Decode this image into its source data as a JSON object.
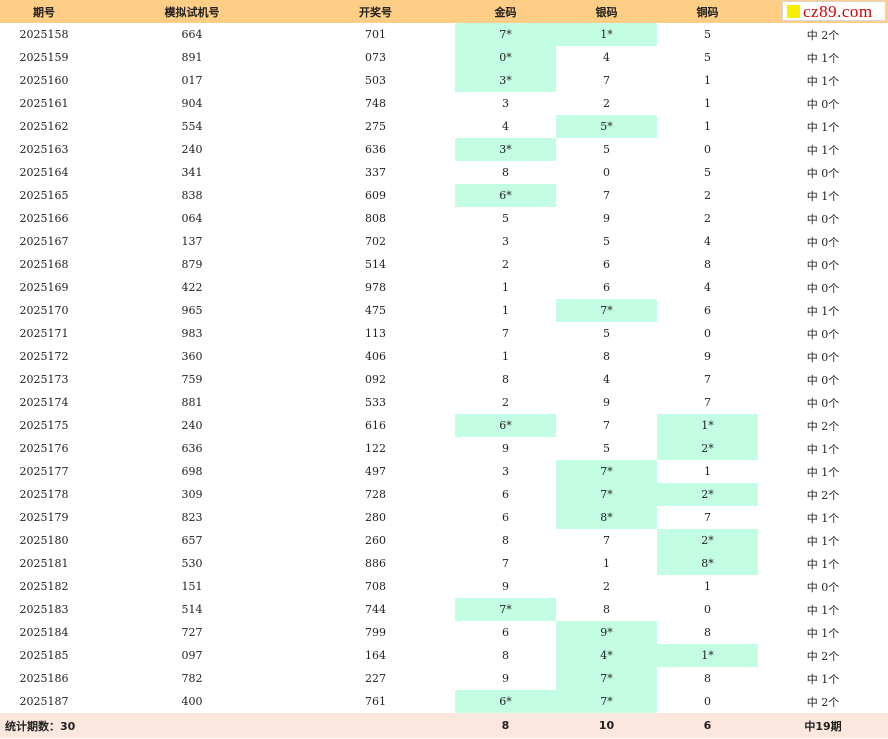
{
  "logo": {
    "text": "cz89.com",
    "icon": "yellow-square-icon"
  },
  "headers": [
    "期号",
    "模拟试机号",
    "开奖号",
    "金码",
    "银码",
    "铜码",
    ""
  ],
  "rows": [
    [
      "2025158",
      "664",
      "701",
      "7*",
      "1*",
      "5",
      "中 2个"
    ],
    [
      "2025159",
      "891",
      "073",
      "0*",
      "4",
      "5",
      "中 1个"
    ],
    [
      "2025160",
      "017",
      "503",
      "3*",
      "7",
      "1",
      "中 1个"
    ],
    [
      "2025161",
      "904",
      "748",
      "3",
      "2",
      "1",
      "中 0个"
    ],
    [
      "2025162",
      "554",
      "275",
      "4",
      "5*",
      "1",
      "中 1个"
    ],
    [
      "2025163",
      "240",
      "636",
      "3*",
      "5",
      "0",
      "中 1个"
    ],
    [
      "2025164",
      "341",
      "337",
      "8",
      "0",
      "5",
      "中 0个"
    ],
    [
      "2025165",
      "838",
      "609",
      "6*",
      "7",
      "2",
      "中 1个"
    ],
    [
      "2025166",
      "064",
      "808",
      "5",
      "9",
      "2",
      "中 0个"
    ],
    [
      "2025167",
      "137",
      "702",
      "3",
      "5",
      "4",
      "中 0个"
    ],
    [
      "2025168",
      "879",
      "514",
      "2",
      "6",
      "8",
      "中 0个"
    ],
    [
      "2025169",
      "422",
      "978",
      "1",
      "6",
      "4",
      "中 0个"
    ],
    [
      "2025170",
      "965",
      "475",
      "1",
      "7*",
      "6",
      "中 1个"
    ],
    [
      "2025171",
      "983",
      "113",
      "7",
      "5",
      "0",
      "中 0个"
    ],
    [
      "2025172",
      "360",
      "406",
      "1",
      "8",
      "9",
      "中 0个"
    ],
    [
      "2025173",
      "759",
      "092",
      "8",
      "4",
      "7",
      "中 0个"
    ],
    [
      "2025174",
      "881",
      "533",
      "2",
      "9",
      "7",
      "中 0个"
    ],
    [
      "2025175",
      "240",
      "616",
      "6*",
      "7",
      "1*",
      "中 2个"
    ],
    [
      "2025176",
      "636",
      "122",
      "9",
      "5",
      "2*",
      "中 1个"
    ],
    [
      "2025177",
      "698",
      "497",
      "3",
      "7*",
      "1",
      "中 1个"
    ],
    [
      "2025178",
      "309",
      "728",
      "6",
      "7*",
      "2*",
      "中 2个"
    ],
    [
      "2025179",
      "823",
      "280",
      "6",
      "8*",
      "7",
      "中 1个"
    ],
    [
      "2025180",
      "657",
      "260",
      "8",
      "7",
      "2*",
      "中 1个"
    ],
    [
      "2025181",
      "530",
      "886",
      "7",
      "1",
      "8*",
      "中 1个"
    ],
    [
      "2025182",
      "151",
      "708",
      "9",
      "2",
      "1",
      "中 0个"
    ],
    [
      "2025183",
      "514",
      "744",
      "7*",
      "8",
      "0",
      "中 1个"
    ],
    [
      "2025184",
      "727",
      "799",
      "6",
      "9*",
      "8",
      "中 1个"
    ],
    [
      "2025185",
      "097",
      "164",
      "8",
      "4*",
      "1*",
      "中 2个"
    ],
    [
      "2025186",
      "782",
      "227",
      "9",
      "7*",
      "8",
      "中 1个"
    ],
    [
      "2025187",
      "400",
      "761",
      "6*",
      "7*",
      "0",
      "中 2个"
    ]
  ],
  "footer": {
    "label": "统计期数：30",
    "gold": "8",
    "silver": "10",
    "bronze": "6",
    "total": "中19期"
  },
  "colors": {
    "header_bg": "#ffce86",
    "hit_bg": "#c3fde3",
    "footer_bg": "#fbe7dd",
    "logo_text": "#d40000"
  }
}
